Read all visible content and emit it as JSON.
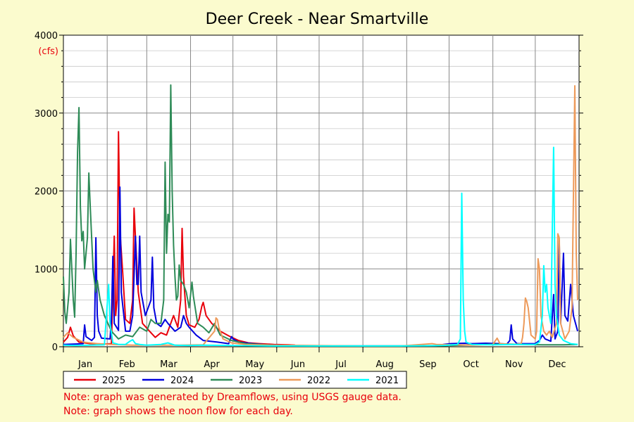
{
  "chart_data": {
    "type": "line",
    "title": "Deer Creek - Near Smartville",
    "ylabel": "(cfs)",
    "xlabel": "",
    "ylim": [
      0,
      4000
    ],
    "yticks": [
      0,
      1000,
      2000,
      3000,
      4000
    ],
    "xlim": [
      1,
      366
    ],
    "x_unit": "day of year",
    "categories": [
      "Jan",
      "Feb",
      "Mar",
      "Apr",
      "May",
      "Jun",
      "Jul",
      "Aug",
      "Sep",
      "Oct",
      "Nov",
      "Dec"
    ],
    "month_starts": [
      1,
      32,
      60,
      91,
      121,
      152,
      182,
      213,
      244,
      274,
      305,
      335
    ],
    "grid": true,
    "legend": "bottom",
    "series": [
      {
        "name": "2025",
        "color": "#e8000b",
        "points": [
          [
            1,
            60
          ],
          [
            4,
            120
          ],
          [
            6,
            250
          ],
          [
            8,
            140
          ],
          [
            12,
            60
          ],
          [
            20,
            40
          ],
          [
            30,
            35
          ],
          [
            35,
            40
          ],
          [
            37,
            1420
          ],
          [
            38,
            400
          ],
          [
            39,
            600
          ],
          [
            40,
            2760
          ],
          [
            41,
            1500
          ],
          [
            43,
            950
          ],
          [
            45,
            350
          ],
          [
            48,
            300
          ],
          [
            50,
            600
          ],
          [
            51,
            1780
          ],
          [
            52,
            1400
          ],
          [
            54,
            700
          ],
          [
            57,
            300
          ],
          [
            62,
            200
          ],
          [
            66,
            120
          ],
          [
            70,
            180
          ],
          [
            74,
            150
          ],
          [
            79,
            400
          ],
          [
            82,
            250
          ],
          [
            84,
            600
          ],
          [
            85,
            1520
          ],
          [
            86,
            900
          ],
          [
            88,
            400
          ],
          [
            90,
            280
          ],
          [
            94,
            250
          ],
          [
            97,
            350
          ],
          [
            99,
            520
          ],
          [
            100,
            570
          ],
          [
            102,
            400
          ],
          [
            106,
            300
          ],
          [
            112,
            200
          ],
          [
            118,
            140
          ],
          [
            125,
            80
          ],
          [
            132,
            50
          ],
          [
            140,
            40
          ],
          [
            150,
            30
          ],
          [
            160,
            25
          ],
          [
            165,
            20
          ]
        ]
      },
      {
        "name": "2024",
        "color": "#0000dd",
        "points": [
          [
            1,
            30
          ],
          [
            10,
            35
          ],
          [
            15,
            40
          ],
          [
            16,
            280
          ],
          [
            17,
            130
          ],
          [
            21,
            80
          ],
          [
            23,
            120
          ],
          [
            24,
            1400
          ],
          [
            25,
            400
          ],
          [
            26,
            200
          ],
          [
            28,
            110
          ],
          [
            34,
            100
          ],
          [
            35,
            350
          ],
          [
            36,
            1160
          ],
          [
            37,
            300
          ],
          [
            40,
            210
          ],
          [
            41,
            2050
          ],
          [
            42,
            700
          ],
          [
            45,
            200
          ],
          [
            48,
            200
          ],
          [
            50,
            400
          ],
          [
            52,
            1420
          ],
          [
            53,
            800
          ],
          [
            54,
            800
          ],
          [
            55,
            1420
          ],
          [
            56,
            700
          ],
          [
            57,
            600
          ],
          [
            59,
            400
          ],
          [
            63,
            600
          ],
          [
            64,
            1150
          ],
          [
            65,
            500
          ],
          [
            67,
            300
          ],
          [
            70,
            260
          ],
          [
            73,
            350
          ],
          [
            75,
            300
          ],
          [
            80,
            200
          ],
          [
            84,
            250
          ],
          [
            86,
            400
          ],
          [
            88,
            300
          ],
          [
            90,
            250
          ],
          [
            95,
            150
          ],
          [
            100,
            80
          ],
          [
            110,
            60
          ],
          [
            118,
            40
          ],
          [
            120,
            130
          ],
          [
            121,
            100
          ],
          [
            125,
            60
          ],
          [
            135,
            40
          ],
          [
            145,
            25
          ],
          [
            160,
            15
          ],
          [
            200,
            10
          ],
          [
            220,
            10
          ],
          [
            250,
            10
          ],
          [
            265,
            12
          ],
          [
            270,
            30
          ],
          [
            275,
            40
          ],
          [
            285,
            45
          ],
          [
            290,
            40
          ],
          [
            300,
            45
          ],
          [
            310,
            40
          ],
          [
            315,
            35
          ],
          [
            317,
            80
          ],
          [
            318,
            280
          ],
          [
            319,
            100
          ],
          [
            322,
            40
          ],
          [
            335,
            40
          ],
          [
            338,
            80
          ],
          [
            340,
            150
          ],
          [
            342,
            100
          ],
          [
            346,
            70
          ],
          [
            348,
            670
          ],
          [
            349,
            100
          ],
          [
            351,
            200
          ],
          [
            352,
            1360
          ],
          [
            353,
            300
          ],
          [
            355,
            1200
          ],
          [
            356,
            400
          ],
          [
            358,
            330
          ],
          [
            360,
            800
          ],
          [
            362,
            400
          ],
          [
            365,
            200
          ]
        ]
      },
      {
        "name": "2023",
        "color": "#2e8b57",
        "points": [
          [
            1,
            900
          ],
          [
            2,
            450
          ],
          [
            3,
            300
          ],
          [
            5,
            700
          ],
          [
            6,
            1380
          ],
          [
            8,
            600
          ],
          [
            9,
            380
          ],
          [
            10,
            1200
          ],
          [
            11,
            2500
          ],
          [
            12,
            3070
          ],
          [
            13,
            1800
          ],
          [
            14,
            1360
          ],
          [
            15,
            1480
          ],
          [
            16,
            1000
          ],
          [
            18,
            1400
          ],
          [
            19,
            2230
          ],
          [
            20,
            1800
          ],
          [
            22,
            1000
          ],
          [
            24,
            700
          ],
          [
            25,
            850
          ],
          [
            27,
            600
          ],
          [
            30,
            400
          ],
          [
            35,
            200
          ],
          [
            40,
            100
          ],
          [
            45,
            150
          ],
          [
            50,
            130
          ],
          [
            55,
            250
          ],
          [
            60,
            200
          ],
          [
            63,
            350
          ],
          [
            66,
            300
          ],
          [
            70,
            300
          ],
          [
            72,
            600
          ],
          [
            73,
            2370
          ],
          [
            74,
            1200
          ],
          [
            75,
            1700
          ],
          [
            76,
            1600
          ],
          [
            77,
            3360
          ],
          [
            78,
            2000
          ],
          [
            79,
            1300
          ],
          [
            80,
            900
          ],
          [
            81,
            600
          ],
          [
            82,
            650
          ],
          [
            83,
            1050
          ],
          [
            84,
            850
          ],
          [
            86,
            800
          ],
          [
            88,
            700
          ],
          [
            90,
            500
          ],
          [
            92,
            830
          ],
          [
            93,
            650
          ],
          [
            96,
            300
          ],
          [
            100,
            250
          ],
          [
            104,
            180
          ],
          [
            108,
            300
          ],
          [
            112,
            150
          ],
          [
            120,
            80
          ],
          [
            125,
            60
          ],
          [
            130,
            40
          ],
          [
            140,
            30
          ],
          [
            150,
            20
          ],
          [
            160,
            15
          ],
          [
            175,
            10
          ],
          [
            200,
            10
          ],
          [
            230,
            10
          ],
          [
            260,
            10
          ],
          [
            285,
            20
          ],
          [
            300,
            30
          ],
          [
            315,
            35
          ],
          [
            325,
            30
          ],
          [
            340,
            25
          ],
          [
            355,
            25
          ],
          [
            365,
            30
          ]
        ]
      },
      {
        "name": "2022",
        "color": "#ed9a5a",
        "points": [
          [
            1,
            120
          ],
          [
            4,
            180
          ],
          [
            8,
            120
          ],
          [
            15,
            60
          ],
          [
            25,
            40
          ],
          [
            35,
            30
          ],
          [
            50,
            20
          ],
          [
            60,
            20
          ],
          [
            80,
            20
          ],
          [
            100,
            25
          ],
          [
            108,
            200
          ],
          [
            109,
            370
          ],
          [
            110,
            350
          ],
          [
            111,
            250
          ],
          [
            114,
            100
          ],
          [
            120,
            50
          ],
          [
            130,
            30
          ],
          [
            150,
            20
          ],
          [
            180,
            15
          ],
          [
            210,
            10
          ],
          [
            240,
            10
          ],
          [
            262,
            40
          ],
          [
            265,
            30
          ],
          [
            290,
            20
          ],
          [
            305,
            30
          ],
          [
            308,
            110
          ],
          [
            310,
            40
          ],
          [
            320,
            30
          ],
          [
            325,
            40
          ],
          [
            326,
            120
          ],
          [
            327,
            300
          ],
          [
            328,
            625
          ],
          [
            329,
            580
          ],
          [
            330,
            500
          ],
          [
            332,
            150
          ],
          [
            335,
            100
          ],
          [
            336,
            200
          ],
          [
            337,
            1130
          ],
          [
            338,
            1000
          ],
          [
            339,
            400
          ],
          [
            341,
            200
          ],
          [
            343,
            150
          ],
          [
            345,
            200
          ],
          [
            347,
            120
          ],
          [
            350,
            300
          ],
          [
            351,
            1450
          ],
          [
            352,
            1400
          ],
          [
            353,
            300
          ],
          [
            356,
            100
          ],
          [
            359,
            200
          ],
          [
            361,
            500
          ],
          [
            363,
            3350
          ],
          [
            364,
            1200
          ],
          [
            365,
            600
          ]
        ]
      },
      {
        "name": "2021",
        "color": "#00ffff",
        "points": [
          [
            1,
            20
          ],
          [
            10,
            15
          ],
          [
            20,
            20
          ],
          [
            30,
            25
          ],
          [
            33,
            800
          ],
          [
            34,
            300
          ],
          [
            36,
            50
          ],
          [
            40,
            30
          ],
          [
            45,
            30
          ],
          [
            48,
            70
          ],
          [
            50,
            90
          ],
          [
            52,
            40
          ],
          [
            55,
            30
          ],
          [
            60,
            20
          ],
          [
            70,
            30
          ],
          [
            75,
            50
          ],
          [
            80,
            20
          ],
          [
            90,
            15
          ],
          [
            100,
            20
          ],
          [
            120,
            15
          ],
          [
            150,
            10
          ],
          [
            180,
            10
          ],
          [
            200,
            10
          ],
          [
            240,
            10
          ],
          [
            270,
            15
          ],
          [
            280,
            30
          ],
          [
            282,
            100
          ],
          [
            283,
            1970
          ],
          [
            284,
            600
          ],
          [
            285,
            200
          ],
          [
            286,
            60
          ],
          [
            290,
            30
          ],
          [
            305,
            25
          ],
          [
            320,
            30
          ],
          [
            335,
            30
          ],
          [
            338,
            60
          ],
          [
            340,
            400
          ],
          [
            341,
            1040
          ],
          [
            342,
            700
          ],
          [
            343,
            800
          ],
          [
            344,
            500
          ],
          [
            346,
            300
          ],
          [
            348,
            2560
          ],
          [
            349,
            800
          ],
          [
            350,
            400
          ],
          [
            352,
            150
          ],
          [
            355,
            80
          ],
          [
            360,
            40
          ],
          [
            365,
            30
          ]
        ]
      }
    ]
  },
  "notes": [
    "Note: graph was generated by Dreamflows, using USGS gauge data.",
    "Note: graph shows the noon flow for each day."
  ]
}
